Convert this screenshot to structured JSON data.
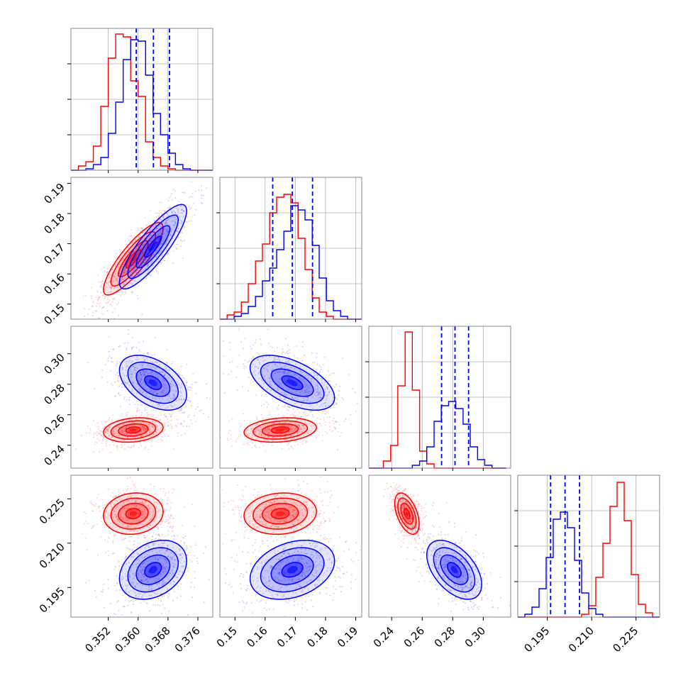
{
  "chart_data": {
    "type": "corner",
    "colors": {
      "red": "#ff0000",
      "blue": "#0000ff",
      "grid": "#b0b0b0",
      "frame": "#888888"
    },
    "series": [
      {
        "color": "red",
        "mean": [
          0.3587,
          0.165,
          0.25,
          0.22
        ],
        "sigma": [
          0.004,
          0.006,
          0.004,
          0.0035
        ],
        "corr": {
          "p0_1": 0.85,
          "p0_2": 0.2,
          "p1_2": 0.2,
          "p0_3": 0.1,
          "p1_3": 0.1,
          "p2_3": -0.5
        }
      },
      {
        "color": "blue",
        "mean": [
          0.364,
          0.169,
          0.281,
          0.201
        ],
        "sigma": [
          0.0045,
          0.007,
          0.009,
          0.005
        ],
        "corr": {
          "p0_1": 0.85,
          "p0_2": -0.45,
          "p1_2": -0.55,
          "p0_3": 0.3,
          "p1_3": 0.3,
          "p2_3": -0.5
        }
      }
    ],
    "parameters": [
      {
        "range": [
          0.342,
          0.38
        ],
        "ticks": [
          "0.352",
          "0.360",
          "0.368",
          "0.376"
        ],
        "tick_values": [
          0.352,
          0.36,
          0.368,
          0.376
        ]
      },
      {
        "range": [
          0.145,
          0.192
        ],
        "ticks": [
          "0.15",
          "0.16",
          "0.17",
          "0.18",
          "0.19"
        ],
        "tick_values": [
          0.15,
          0.16,
          0.17,
          0.18,
          0.19
        ]
      },
      {
        "range": [
          0.225,
          0.318
        ],
        "ticks": [
          "0.24",
          "0.26",
          "0.28",
          "0.30"
        ],
        "tick_values": [
          0.24,
          0.26,
          0.28,
          0.3
        ]
      },
      {
        "range": [
          0.185,
          0.233
        ],
        "ticks": [
          "0.195",
          "0.210",
          "0.225"
        ],
        "tick_values": [
          0.195,
          0.21,
          0.225
        ]
      }
    ],
    "histograms": [
      {
        "bins": [
          0.342,
          0.344,
          0.346,
          0.348,
          0.35,
          0.352,
          0.354,
          0.356,
          0.358,
          0.36,
          0.362,
          0.364,
          0.366,
          0.368,
          0.37,
          0.372,
          0.374,
          0.376,
          0.378,
          0.38
        ],
        "red": [
          0.0,
          0.03,
          0.06,
          0.17,
          0.45,
          0.79,
          0.96,
          0.94,
          0.63,
          0.52,
          0.2,
          0.09,
          0.03,
          0.01,
          0.0,
          0.0,
          0.0,
          0.0,
          0.0
        ],
        "blue": [
          0.0,
          0.0,
          0.01,
          0.04,
          0.09,
          0.26,
          0.48,
          0.78,
          0.92,
          0.91,
          0.67,
          0.4,
          0.25,
          0.12,
          0.04,
          0.01,
          0.0,
          0.0,
          0.0
        ],
        "quantiles": [
          0.3595,
          0.3641,
          0.3684
        ]
      },
      {
        "bins": [
          0.145,
          0.1474,
          0.1497,
          0.1521,
          0.1544,
          0.1568,
          0.1591,
          0.1615,
          0.1638,
          0.1662,
          0.1685,
          0.1709,
          0.1732,
          0.1756,
          0.1779,
          0.1803,
          0.1826,
          0.185,
          0.1873,
          0.1897,
          0.192
        ],
        "red": [
          0.0,
          0.03,
          0.05,
          0.12,
          0.25,
          0.41,
          0.53,
          0.75,
          0.86,
          0.88,
          0.82,
          0.57,
          0.35,
          0.15,
          0.05,
          0.02,
          0.0,
          0.0,
          0.0,
          0.0
        ],
        "blue": [
          0.0,
          0.0,
          0.02,
          0.04,
          0.09,
          0.16,
          0.27,
          0.36,
          0.49,
          0.62,
          0.8,
          0.77,
          0.7,
          0.52,
          0.29,
          0.13,
          0.06,
          0.02,
          0.0,
          0.0
        ],
        "quantiles": [
          0.1625,
          0.169,
          0.1757
        ]
      },
      {
        "bins": [
          0.225,
          0.2298,
          0.2345,
          0.2393,
          0.244,
          0.2488,
          0.2535,
          0.2583,
          0.263,
          0.2678,
          0.2725,
          0.2773,
          0.282,
          0.2868,
          0.2915,
          0.2963,
          0.301,
          0.3058,
          0.3105,
          0.315
        ],
        "red": [
          0.0,
          0.0,
          0.05,
          0.16,
          0.58,
          0.96,
          0.55,
          0.12,
          0.03,
          0.0,
          0.0,
          0.0,
          0.0,
          0.0,
          0.0,
          0.0,
          0.0,
          0.0,
          0.0
        ],
        "blue": [
          0.0,
          0.0,
          0.0,
          0.0,
          0.0,
          0.0,
          0.02,
          0.05,
          0.15,
          0.33,
          0.44,
          0.47,
          0.42,
          0.31,
          0.15,
          0.06,
          0.02,
          0.0,
          0.0
        ],
        "quantiles": [
          0.2727,
          0.2815,
          0.2904
        ]
      },
      {
        "bins": [
          0.185,
          0.1874,
          0.1898,
          0.1922,
          0.1946,
          0.197,
          0.1994,
          0.2018,
          0.2042,
          0.2066,
          0.209,
          0.2114,
          0.2138,
          0.2162,
          0.2186,
          0.221,
          0.2234,
          0.2258,
          0.2282,
          0.2306,
          0.233
        ],
        "red": [
          0.0,
          0.0,
          0.0,
          0.0,
          0.0,
          0.0,
          0.0,
          0.0,
          0.0,
          0.02,
          0.08,
          0.28,
          0.52,
          0.78,
          0.95,
          0.68,
          0.3,
          0.09,
          0.03,
          0.0
        ],
        "blue": [
          0.0,
          0.02,
          0.07,
          0.2,
          0.42,
          0.69,
          0.74,
          0.63,
          0.4,
          0.17,
          0.06,
          0.02,
          0.0,
          0.0,
          0.0,
          0.0,
          0.0,
          0.0,
          0.0,
          0.0
        ],
        "quantiles": [
          0.1961,
          0.201,
          0.2059
        ]
      }
    ],
    "grid": true,
    "quantile_line_style": "dashed",
    "contour_levels": [
      0.5,
      1.0,
      1.5,
      2.0
    ]
  }
}
